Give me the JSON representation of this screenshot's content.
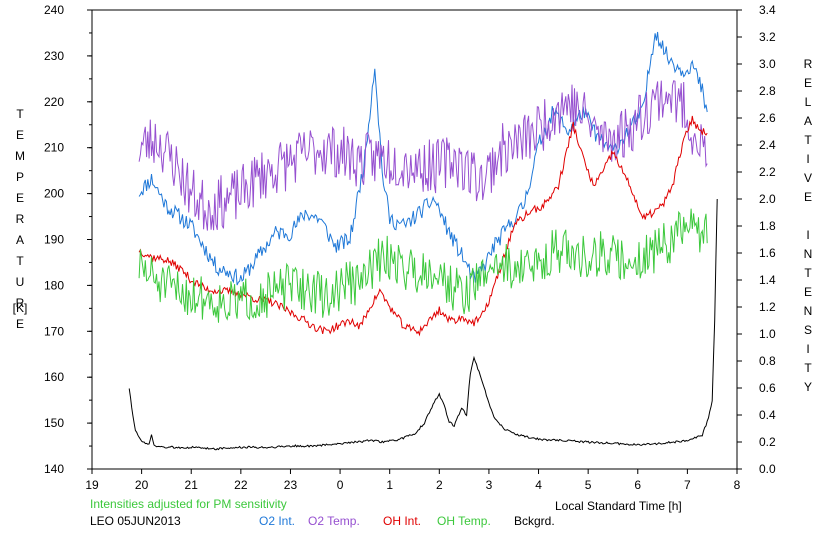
{
  "chart_data": {
    "type": "line",
    "x_unit_label": "Local Standard Time [h]",
    "x_ticks": [
      "19",
      "20",
      "21",
      "22",
      "23",
      "0",
      "1",
      "2",
      "3",
      "4",
      "5",
      "6",
      "7",
      "8"
    ],
    "x_range": [
      19,
      32
    ],
    "y_left": {
      "label": "TEMPERATURE",
      "unit": "[K]",
      "range": [
        140,
        240
      ],
      "ticks": [
        "140",
        "150",
        "160",
        "170",
        "180",
        "190",
        "200",
        "210",
        "220",
        "230",
        "240"
      ]
    },
    "y_right": {
      "label": "RELATIVE INTENSITY",
      "range": [
        0.0,
        3.4
      ],
      "ticks": [
        "0.0",
        "0.2",
        "0.4",
        "0.6",
        "0.8",
        "1.0",
        "1.2",
        "1.4",
        "1.6",
        "1.8",
        "2.0",
        "2.2",
        "2.4",
        "2.6",
        "2.8",
        "3.0",
        "3.2",
        "3.4"
      ]
    },
    "note": "Intensities adjusted for PM sensitivity",
    "footer_id": "LEO 05JUN2013",
    "series": [
      {
        "name": "O2 Int.",
        "axis": "right",
        "color": "#1f78d8",
        "noise": 0.06,
        "seed": 11,
        "points": [
          [
            19.95,
            2.05
          ],
          [
            20.2,
            2.15
          ],
          [
            20.5,
            1.95
          ],
          [
            21.0,
            1.8
          ],
          [
            21.5,
            1.5
          ],
          [
            21.8,
            1.45
          ],
          [
            22.0,
            1.4
          ],
          [
            22.3,
            1.55
          ],
          [
            22.7,
            1.75
          ],
          [
            23.0,
            1.75
          ],
          [
            23.3,
            1.9
          ],
          [
            23.6,
            1.85
          ],
          [
            23.9,
            1.65
          ],
          [
            24.2,
            1.7
          ],
          [
            24.5,
            2.3
          ],
          [
            24.7,
            3.0
          ],
          [
            24.85,
            2.2
          ],
          [
            25.0,
            1.85
          ],
          [
            25.3,
            1.8
          ],
          [
            25.6,
            1.9
          ],
          [
            25.9,
            2.0
          ],
          [
            26.2,
            1.75
          ],
          [
            26.5,
            1.55
          ],
          [
            26.7,
            1.4
          ],
          [
            26.9,
            1.5
          ],
          [
            27.1,
            1.65
          ],
          [
            27.4,
            1.8
          ],
          [
            27.7,
            1.95
          ],
          [
            28.0,
            2.4
          ],
          [
            28.3,
            2.65
          ],
          [
            28.6,
            2.5
          ],
          [
            28.9,
            2.65
          ],
          [
            29.2,
            2.45
          ],
          [
            29.5,
            2.35
          ],
          [
            29.8,
            2.5
          ],
          [
            30.1,
            2.65
          ],
          [
            30.35,
            3.25
          ],
          [
            30.6,
            3.05
          ],
          [
            30.9,
            2.95
          ],
          [
            31.1,
            3.0
          ],
          [
            31.3,
            2.8
          ],
          [
            31.4,
            2.6
          ]
        ]
      },
      {
        "name": "O2 Temp.",
        "axis": "left",
        "color": "#9650d0",
        "noise": 6,
        "seed": 23,
        "points": [
          [
            19.95,
            210
          ],
          [
            20.3,
            212
          ],
          [
            20.7,
            206
          ],
          [
            21.0,
            200
          ],
          [
            21.3,
            197
          ],
          [
            21.6,
            198
          ],
          [
            22.0,
            200
          ],
          [
            22.4,
            204
          ],
          [
            22.8,
            206
          ],
          [
            23.2,
            208
          ],
          [
            23.6,
            210
          ],
          [
            24.0,
            209
          ],
          [
            24.4,
            207
          ],
          [
            24.8,
            208
          ],
          [
            25.2,
            207
          ],
          [
            25.6,
            206
          ],
          [
            26.0,
            206
          ],
          [
            26.3,
            208
          ],
          [
            26.6,
            205
          ],
          [
            26.9,
            203
          ],
          [
            27.2,
            209
          ],
          [
            27.6,
            211
          ],
          [
            28.0,
            214
          ],
          [
            28.3,
            218
          ],
          [
            28.6,
            220
          ],
          [
            29.0,
            216
          ],
          [
            29.3,
            212
          ],
          [
            29.7,
            213
          ],
          [
            30.0,
            216
          ],
          [
            30.3,
            220
          ],
          [
            30.6,
            222
          ],
          [
            30.9,
            219
          ],
          [
            31.2,
            212
          ],
          [
            31.4,
            208
          ]
        ]
      },
      {
        "name": "OH Int.",
        "axis": "right",
        "color": "#e00000",
        "noise": 0.03,
        "seed": 37,
        "points": [
          [
            19.95,
            1.62
          ],
          [
            20.2,
            1.57
          ],
          [
            20.5,
            1.55
          ],
          [
            20.8,
            1.48
          ],
          [
            21.0,
            1.4
          ],
          [
            21.3,
            1.33
          ],
          [
            21.6,
            1.32
          ],
          [
            22.0,
            1.3
          ],
          [
            22.3,
            1.26
          ],
          [
            22.6,
            1.24
          ],
          [
            22.9,
            1.18
          ],
          [
            23.2,
            1.12
          ],
          [
            23.5,
            1.05
          ],
          [
            23.7,
            1.02
          ],
          [
            23.9,
            1.05
          ],
          [
            24.2,
            1.1
          ],
          [
            24.4,
            1.05
          ],
          [
            24.6,
            1.2
          ],
          [
            24.8,
            1.32
          ],
          [
            25.0,
            1.2
          ],
          [
            25.3,
            1.05
          ],
          [
            25.6,
            1.02
          ],
          [
            25.8,
            1.1
          ],
          [
            26.0,
            1.18
          ],
          [
            26.2,
            1.1
          ],
          [
            26.5,
            1.12
          ],
          [
            26.7,
            1.08
          ],
          [
            26.9,
            1.15
          ],
          [
            27.2,
            1.45
          ],
          [
            27.5,
            1.8
          ],
          [
            27.8,
            1.9
          ],
          [
            28.1,
            1.95
          ],
          [
            28.4,
            2.1
          ],
          [
            28.7,
            2.55
          ],
          [
            28.9,
            2.3
          ],
          [
            29.1,
            2.1
          ],
          [
            29.3,
            2.2
          ],
          [
            29.5,
            2.35
          ],
          [
            29.7,
            2.2
          ],
          [
            29.9,
            2.05
          ],
          [
            30.1,
            1.85
          ],
          [
            30.3,
            1.9
          ],
          [
            30.5,
            1.95
          ],
          [
            30.7,
            2.1
          ],
          [
            30.9,
            2.4
          ],
          [
            31.1,
            2.6
          ],
          [
            31.25,
            2.5
          ],
          [
            31.4,
            2.5
          ]
        ]
      },
      {
        "name": "OH Temp.",
        "axis": "left",
        "color": "#3cc83c",
        "noise": 5,
        "seed": 51,
        "points": [
          [
            19.95,
            184
          ],
          [
            20.3,
            181
          ],
          [
            20.6,
            179
          ],
          [
            21.0,
            178
          ],
          [
            21.4,
            177
          ],
          [
            21.8,
            176
          ],
          [
            22.2,
            177
          ],
          [
            22.6,
            178
          ],
          [
            23.0,
            180
          ],
          [
            23.4,
            179
          ],
          [
            23.8,
            177
          ],
          [
            24.1,
            181
          ],
          [
            24.4,
            180
          ],
          [
            24.7,
            185
          ],
          [
            25.0,
            186
          ],
          [
            25.3,
            184
          ],
          [
            25.6,
            183
          ],
          [
            25.9,
            184
          ],
          [
            26.2,
            180
          ],
          [
            26.5,
            178
          ],
          [
            26.8,
            181
          ],
          [
            27.1,
            185
          ],
          [
            27.4,
            184
          ],
          [
            27.7,
            184
          ],
          [
            28.0,
            184
          ],
          [
            28.3,
            188
          ],
          [
            28.6,
            187
          ],
          [
            28.9,
            186
          ],
          [
            29.2,
            187
          ],
          [
            29.5,
            186
          ],
          [
            29.8,
            185
          ],
          [
            30.1,
            186
          ],
          [
            30.4,
            188
          ],
          [
            30.7,
            190
          ],
          [
            31.0,
            193
          ],
          [
            31.2,
            192
          ],
          [
            31.4,
            192
          ]
        ]
      },
      {
        "name": "Bckgrd.",
        "axis": "right",
        "color": "#000000",
        "noise": 0.008,
        "seed": 73,
        "points": [
          [
            19.75,
            0.6
          ],
          [
            19.8,
            0.45
          ],
          [
            19.88,
            0.28
          ],
          [
            20.0,
            0.2
          ],
          [
            20.15,
            0.18
          ],
          [
            20.2,
            0.26
          ],
          [
            20.25,
            0.17
          ],
          [
            20.5,
            0.16
          ],
          [
            21.0,
            0.16
          ],
          [
            21.5,
            0.15
          ],
          [
            22.0,
            0.16
          ],
          [
            22.5,
            0.16
          ],
          [
            23.0,
            0.17
          ],
          [
            23.5,
            0.17
          ],
          [
            24.0,
            0.19
          ],
          [
            24.3,
            0.2
          ],
          [
            24.6,
            0.21
          ],
          [
            24.9,
            0.2
          ],
          [
            25.2,
            0.22
          ],
          [
            25.5,
            0.26
          ],
          [
            25.7,
            0.34
          ],
          [
            25.9,
            0.5
          ],
          [
            26.0,
            0.55
          ],
          [
            26.1,
            0.47
          ],
          [
            26.2,
            0.35
          ],
          [
            26.3,
            0.32
          ],
          [
            26.45,
            0.45
          ],
          [
            26.55,
            0.4
          ],
          [
            26.62,
            0.7
          ],
          [
            26.7,
            0.82
          ],
          [
            26.8,
            0.72
          ],
          [
            26.95,
            0.55
          ],
          [
            27.1,
            0.38
          ],
          [
            27.3,
            0.3
          ],
          [
            27.6,
            0.25
          ],
          [
            28.0,
            0.22
          ],
          [
            28.5,
            0.21
          ],
          [
            29.0,
            0.2
          ],
          [
            29.5,
            0.19
          ],
          [
            30.0,
            0.18
          ],
          [
            30.5,
            0.19
          ],
          [
            31.0,
            0.21
          ],
          [
            31.3,
            0.25
          ],
          [
            31.4,
            0.35
          ],
          [
            31.5,
            0.5
          ],
          [
            31.55,
            1.1
          ],
          [
            31.6,
            2.0
          ]
        ]
      }
    ]
  }
}
